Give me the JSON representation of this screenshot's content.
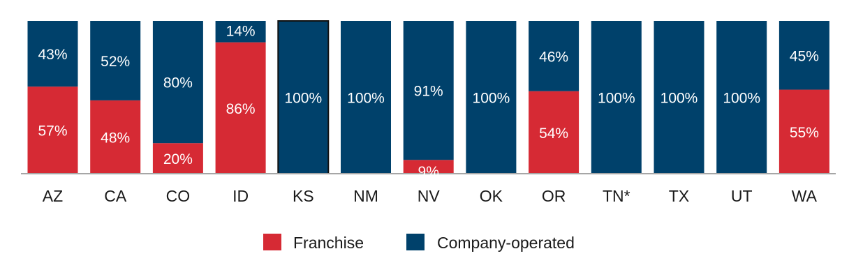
{
  "chart_data": {
    "type": "bar",
    "stacked": true,
    "percent": true,
    "categories": [
      "AZ",
      "CA",
      "CO",
      "ID",
      "KS",
      "NM",
      "NV",
      "OK",
      "OR",
      "TN*",
      "TX",
      "UT",
      "WA"
    ],
    "series": [
      {
        "name": "Franchise",
        "color": "#d62a34",
        "values": [
          57,
          48,
          20,
          86,
          0,
          0,
          9,
          0,
          54,
          0,
          0,
          0,
          55
        ]
      },
      {
        "name": "Company-operated",
        "color": "#00416b",
        "values": [
          43,
          52,
          80,
          14,
          100,
          100,
          91,
          100,
          46,
          100,
          100,
          100,
          45
        ]
      }
    ],
    "ylim": [
      0,
      100
    ],
    "legend_position": "bottom",
    "grid": false,
    "title": "",
    "xlabel": "",
    "ylabel": ""
  }
}
